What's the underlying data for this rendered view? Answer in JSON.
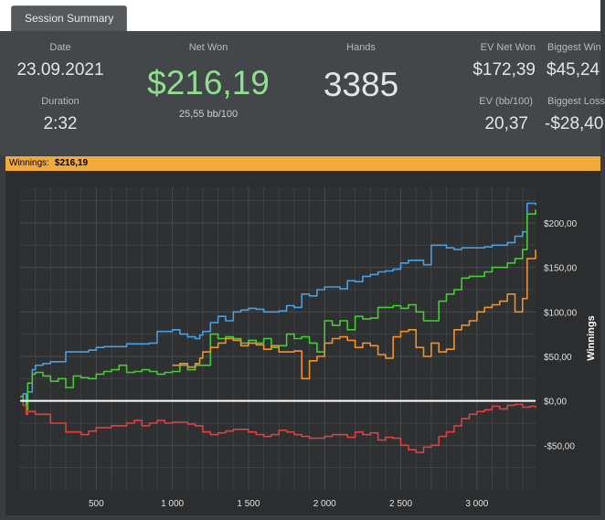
{
  "tab": {
    "label": "Session Summary"
  },
  "summary": {
    "date_label": "Date",
    "date_value": "23.09.2021",
    "duration_label": "Duration",
    "duration_value": "2:32",
    "net_won_label": "Net Won",
    "net_won_value": "$216,19",
    "net_won_sub": "25,55 bb/100",
    "hands_label": "Hands",
    "hands_value": "3385",
    "ev_net_won_label": "EV Net Won",
    "ev_net_won_value": "$172,39",
    "biggest_win_label": "Biggest Win",
    "biggest_win_value": "$45,24",
    "ev_bb_label": "EV (bb/100)",
    "ev_bb_value": "20,37",
    "biggest_loss_label": "Biggest Loss",
    "biggest_loss_value": "-$28,40"
  },
  "banner": {
    "label": "Winnings:",
    "value": "$216,19"
  },
  "colors": {
    "blue": "#4a9fe0",
    "green": "#44cc33",
    "orange": "#f0922b",
    "red": "#e04040",
    "banner": "#f2a93b",
    "grid": "#3e4245",
    "zero": "#ffffff"
  },
  "chart_data": {
    "type": "line",
    "xlabel": "",
    "ylabel": "Winnings",
    "xlim": [
      0,
      3385
    ],
    "ylim": [
      -100,
      240
    ],
    "x_ticks": [
      500,
      1000,
      1500,
      2000,
      2500,
      3000
    ],
    "x_tick_labels": [
      "500",
      "1 000",
      "1 500",
      "2 000",
      "2 500",
      "3 000"
    ],
    "y_ticks": [
      -50,
      0,
      50,
      100,
      150,
      200
    ],
    "y_tick_labels": [
      "-$50,00",
      "$0,00",
      "$50,00",
      "$100,00",
      "$150,00",
      "$200,00"
    ],
    "grid": true,
    "series": [
      {
        "color": "#4a9fe0",
        "x": [
          0,
          20,
          40,
          50,
          80,
          100,
          150,
          200,
          300,
          450,
          500,
          550,
          700,
          850,
          900,
          1000,
          1050,
          1100,
          1150,
          1180,
          1200,
          1250,
          1300,
          1350,
          1400,
          1450,
          1500,
          1550,
          1600,
          1700,
          1750,
          1800,
          1850,
          1900,
          1950,
          2000,
          2050,
          2100,
          2150,
          2200,
          2250,
          2300,
          2350,
          2400,
          2450,
          2500,
          2550,
          2600,
          2650,
          2700,
          2750,
          2800,
          2850,
          2900,
          2950,
          3000,
          3050,
          3100,
          3150,
          3200,
          3250,
          3300,
          3330,
          3385
        ],
        "y": [
          5,
          8,
          -5,
          10,
          35,
          40,
          42,
          44,
          55,
          57,
          60,
          61,
          64,
          65,
          78,
          80,
          75,
          72,
          70,
          74,
          78,
          88,
          95,
          90,
          100,
          102,
          104,
          103,
          100,
          101,
          107,
          105,
          120,
          118,
          125,
          128,
          128,
          126,
          135,
          134,
          140,
          142,
          145,
          146,
          148,
          155,
          158,
          158,
          153,
          175,
          175,
          172,
          170,
          172,
          172,
          172,
          173,
          175,
          175,
          178,
          185,
          190,
          222,
          220
        ]
      },
      {
        "color": "#44cc33",
        "x": [
          0,
          20,
          40,
          50,
          80,
          100,
          150,
          200,
          250,
          300,
          350,
          400,
          450,
          500,
          550,
          600,
          650,
          700,
          750,
          800,
          850,
          900,
          950,
          1000,
          1050,
          1100,
          1150,
          1200,
          1250,
          1300,
          1350,
          1400,
          1450,
          1500,
          1550,
          1600,
          1650,
          1700,
          1750,
          1800,
          1850,
          1900,
          1950,
          2000,
          2050,
          2100,
          2150,
          2200,
          2250,
          2300,
          2350,
          2400,
          2450,
          2500,
          2550,
          2600,
          2650,
          2700,
          2750,
          2800,
          2850,
          2900,
          2950,
          3000,
          3050,
          3100,
          3150,
          3200,
          3250,
          3300,
          3330,
          3385
        ],
        "y": [
          5,
          0,
          -10,
          20,
          30,
          32,
          28,
          22,
          25,
          15,
          28,
          26,
          25,
          30,
          33,
          35,
          40,
          32,
          33,
          35,
          33,
          30,
          32,
          33,
          40,
          35,
          40,
          40,
          75,
          70,
          72,
          70,
          65,
          68,
          65,
          70,
          60,
          62,
          75,
          70,
          72,
          65,
          55,
          90,
          85,
          90,
          80,
          95,
          92,
          93,
          105,
          105,
          107,
          104,
          108,
          100,
          90,
          90,
          112,
          120,
          125,
          138,
          140,
          140,
          145,
          150,
          150,
          155,
          160,
          170,
          210,
          215
        ]
      },
      {
        "color": "#f0922b",
        "x": [
          1000,
          1050,
          1100,
          1150,
          1180,
          1200,
          1250,
          1300,
          1350,
          1400,
          1450,
          1500,
          1550,
          1600,
          1650,
          1700,
          1750,
          1800,
          1850,
          1900,
          1950,
          2000,
          2050,
          2100,
          2150,
          2200,
          2250,
          2300,
          2350,
          2400,
          2450,
          2500,
          2550,
          2600,
          2650,
          2700,
          2750,
          2800,
          2850,
          2900,
          2950,
          3000,
          3050,
          3100,
          3150,
          3200,
          3250,
          3300,
          3330,
          3385
        ],
        "y": [
          40,
          42,
          38,
          42,
          48,
          55,
          60,
          65,
          70,
          68,
          62,
          65,
          63,
          58,
          62,
          55,
          55,
          56,
          25,
          45,
          50,
          65,
          70,
          72,
          68,
          60,
          65,
          62,
          52,
          48,
          72,
          78,
          80,
          60,
          50,
          65,
          55,
          58,
          80,
          85,
          90,
          100,
          105,
          108,
          112,
          120,
          100,
          115,
          160,
          170
        ]
      },
      {
        "color": "#e04040",
        "x": [
          0,
          20,
          40,
          50,
          100,
          200,
          300,
          400,
          450,
          500,
          600,
          700,
          750,
          800,
          850,
          900,
          950,
          1000,
          1100,
          1150,
          1200,
          1250,
          1300,
          1350,
          1400,
          1500,
          1550,
          1600,
          1650,
          1700,
          1750,
          1800,
          1850,
          1900,
          1950,
          2000,
          2050,
          2100,
          2150,
          2200,
          2250,
          2300,
          2350,
          2400,
          2450,
          2500,
          2550,
          2600,
          2650,
          2700,
          2750,
          2800,
          2850,
          2900,
          2950,
          3000,
          3050,
          3100,
          3150,
          3200,
          3250,
          3300,
          3350,
          3385
        ],
        "y": [
          0,
          -5,
          -15,
          -12,
          -15,
          -25,
          -35,
          -38,
          -34,
          -30,
          -28,
          -25,
          -22,
          -28,
          -25,
          -22,
          -25,
          -24,
          -26,
          -28,
          -35,
          -38,
          -36,
          -34,
          -32,
          -35,
          -38,
          -40,
          -38,
          -33,
          -35,
          -38,
          -40,
          -42,
          -42,
          -40,
          -38,
          -38,
          -41,
          -35,
          -38,
          -36,
          -44,
          -41,
          -42,
          -50,
          -55,
          -58,
          -52,
          -50,
          -40,
          -35,
          -28,
          -20,
          -15,
          -12,
          -10,
          -6,
          -9,
          -5,
          -4,
          -7,
          -6,
          -8
        ]
      }
    ]
  }
}
